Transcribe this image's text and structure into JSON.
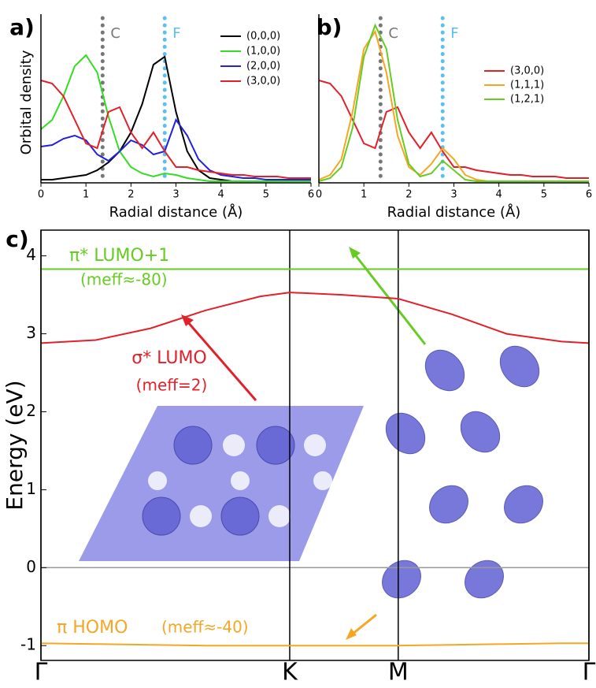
{
  "chart_data": [
    {
      "type": "line",
      "panel_label": "a)",
      "xlabel": "Radial distance (Å)",
      "ylabel": "Orbital density",
      "xlim": [
        0,
        6
      ],
      "xticks": [
        0,
        1,
        2,
        3,
        4,
        5,
        6
      ],
      "ylim": [
        0,
        1.02
      ],
      "x": [
        0,
        0.25,
        0.5,
        0.75,
        1,
        1.25,
        1.5,
        1.75,
        2,
        2.25,
        2.5,
        2.75,
        3,
        3.25,
        3.5,
        3.75,
        4,
        4.25,
        4.5,
        4.75,
        5,
        5.25,
        5.5,
        5.75,
        6
      ],
      "vlines": [
        {
          "x": 1.37,
          "label": "C",
          "color": "#777777"
        },
        {
          "x": 2.75,
          "label": "F",
          "color": "#5bc0f0"
        }
      ],
      "legend": "upper right",
      "series": [
        {
          "name": "(0,0,0)",
          "color": "#000000",
          "values": [
            0.02,
            0.02,
            0.03,
            0.04,
            0.05,
            0.08,
            0.13,
            0.2,
            0.32,
            0.5,
            0.75,
            0.8,
            0.45,
            0.2,
            0.08,
            0.03,
            0.02,
            0.01,
            0.01,
            0.01,
            0.01,
            0.01,
            0.01,
            0.01,
            0.01
          ]
        },
        {
          "name": "(1,0,0)",
          "color": "#33dd22",
          "values": [
            0.34,
            0.4,
            0.55,
            0.74,
            0.81,
            0.7,
            0.42,
            0.2,
            0.1,
            0.06,
            0.04,
            0.06,
            0.05,
            0.03,
            0.02,
            0.01,
            0.01,
            0.01,
            0.01,
            0.01,
            0.01,
            0.01,
            0.01,
            0.01,
            0.01
          ]
        },
        {
          "name": "(2,0,0)",
          "color": "#2222dd",
          "values": [
            0.23,
            0.24,
            0.28,
            0.3,
            0.27,
            0.18,
            0.14,
            0.2,
            0.27,
            0.24,
            0.18,
            0.2,
            0.4,
            0.3,
            0.15,
            0.08,
            0.05,
            0.04,
            0.03,
            0.03,
            0.02,
            0.02,
            0.02,
            0.02,
            0.02
          ]
        },
        {
          "name": "(3,0,0)",
          "color": "#e3202a",
          "values": [
            0.65,
            0.63,
            0.55,
            0.4,
            0.25,
            0.22,
            0.45,
            0.48,
            0.32,
            0.22,
            0.32,
            0.2,
            0.1,
            0.1,
            0.08,
            0.07,
            0.06,
            0.05,
            0.05,
            0.04,
            0.04,
            0.04,
            0.03,
            0.03,
            0.03
          ]
        }
      ]
    },
    {
      "type": "line",
      "panel_label": "b)",
      "xlabel": "Radial distance (Å)",
      "xlim": [
        0,
        6
      ],
      "xticks": [
        0,
        1,
        2,
        3,
        4,
        5,
        6
      ],
      "ylim": [
        0,
        1.02
      ],
      "x": [
        0,
        0.25,
        0.5,
        0.75,
        1,
        1.25,
        1.5,
        1.75,
        2,
        2.25,
        2.5,
        2.75,
        3,
        3.25,
        3.5,
        3.75,
        4,
        4.25,
        4.5,
        4.75,
        5,
        5.25,
        5.5,
        5.75,
        6
      ],
      "vlines": [
        {
          "x": 1.37,
          "label": "C",
          "color": "#777777"
        },
        {
          "x": 2.75,
          "label": "F",
          "color": "#5bc0f0"
        }
      ],
      "legend": "right",
      "series": [
        {
          "name": "(3,0,0)",
          "color": "#e3202a",
          "values": [
            0.65,
            0.63,
            0.55,
            0.4,
            0.25,
            0.22,
            0.45,
            0.48,
            0.32,
            0.22,
            0.32,
            0.2,
            0.1,
            0.1,
            0.08,
            0.07,
            0.06,
            0.05,
            0.05,
            0.04,
            0.04,
            0.04,
            0.03,
            0.03,
            0.03
          ]
        },
        {
          "name": "(1,1,1)",
          "color": "#f5a623",
          "values": [
            0.02,
            0.05,
            0.15,
            0.45,
            0.85,
            0.96,
            0.7,
            0.3,
            0.1,
            0.05,
            0.12,
            0.22,
            0.15,
            0.05,
            0.02,
            0.01,
            0.01,
            0.01,
            0.01,
            0.01,
            0.01,
            0.01,
            0.01,
            0.01,
            0.01
          ]
        },
        {
          "name": "(1,2,1)",
          "color": "#66cc22",
          "values": [
            0.01,
            0.03,
            0.1,
            0.35,
            0.8,
            1.0,
            0.85,
            0.4,
            0.12,
            0.04,
            0.06,
            0.14,
            0.08,
            0.02,
            0.01,
            0.01,
            0.01,
            0.01,
            0.01,
            0.01,
            0.01,
            0.01,
            0.01,
            0.01,
            0.01
          ]
        }
      ]
    },
    {
      "type": "band",
      "panel_label": "c)",
      "ylabel": "Energy (eV)",
      "xlim": [
        0,
        1
      ],
      "xticks": [
        {
          "value": 0,
          "label": "Γ"
        },
        {
          "value": 0.454,
          "label": "K"
        },
        {
          "value": 0.652,
          "label": "M"
        },
        {
          "value": 1,
          "label": "Γ"
        }
      ],
      "ylim": [
        -1.19,
        4.33
      ],
      "yticks": [
        -1,
        0,
        1,
        2,
        3,
        4
      ],
      "x": [
        0,
        0.1,
        0.2,
        0.3,
        0.4,
        0.454,
        0.55,
        0.652,
        0.75,
        0.85,
        0.95,
        1
      ],
      "series": [
        {
          "name": "π* LUMO+1",
          "color": "#66cc22",
          "values": [
            3.83,
            3.83,
            3.83,
            3.83,
            3.83,
            3.83,
            3.83,
            3.83,
            3.83,
            3.83,
            3.83,
            3.83
          ]
        },
        {
          "name": "σ* LUMO",
          "color": "#e3202a",
          "values": [
            2.88,
            2.92,
            3.07,
            3.3,
            3.48,
            3.53,
            3.5,
            3.45,
            3.25,
            3.0,
            2.9,
            2.88
          ]
        },
        {
          "name": "π HOMO",
          "color": "#f5a623",
          "values": [
            -0.97,
            -0.98,
            -0.99,
            -1.0,
            -1.0,
            -1.0,
            -1.0,
            -1.0,
            -0.99,
            -0.98,
            -0.97,
            -0.97
          ]
        }
      ],
      "annotations": [
        {
          "text": "(meff≈-80)",
          "color": "#66cc22"
        },
        {
          "text": "(meff=2)",
          "color": "#e3202a"
        },
        {
          "text": "(meff≈-40)",
          "color": "#f5a623"
        }
      ]
    }
  ]
}
